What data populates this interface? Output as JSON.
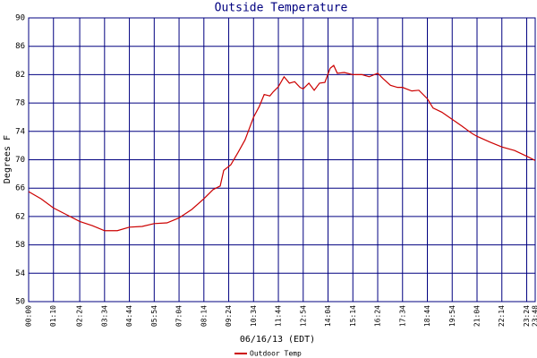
{
  "chart_data": {
    "type": "line",
    "title": "Outside Temperature",
    "x_label": "06/16/13 (EDT)",
    "y_label": "Degrees F",
    "x": [
      0,
      35,
      70,
      105,
      144,
      180,
      214,
      250,
      284,
      320,
      354,
      390,
      424,
      460,
      494,
      520,
      540,
      550,
      570,
      590,
      610,
      634,
      650,
      664,
      680,
      690,
      704,
      720,
      735,
      750,
      765,
      774,
      790,
      805,
      820,
      835,
      850,
      860,
      870,
      890,
      914,
      940,
      960,
      984,
      1000,
      1020,
      1040,
      1054,
      1080,
      1100,
      1124,
      1140,
      1165,
      1194,
      1220,
      1250,
      1264,
      1300,
      1334,
      1370,
      1404,
      1428
    ],
    "series": [
      {
        "name": "Outdoor Temp",
        "color": "#cc0000",
        "values": [
          65.5,
          64.5,
          63.2,
          62.3,
          61.3,
          60.7,
          60.0,
          60.0,
          60.5,
          60.6,
          61.0,
          61.1,
          61.8,
          63.0,
          64.5,
          65.8,
          66.3,
          68.5,
          69.3,
          71.0,
          72.8,
          76.0,
          77.5,
          79.2,
          79.0,
          79.6,
          80.3,
          81.7,
          80.8,
          81.0,
          80.2,
          80.0,
          80.8,
          79.8,
          80.8,
          80.9,
          82.9,
          83.3,
          82.2,
          82.3,
          82.0,
          82.0,
          81.7,
          82.2,
          81.4,
          80.5,
          80.2,
          80.2,
          79.7,
          79.8,
          78.6,
          77.3,
          76.7,
          75.7,
          74.8,
          73.7,
          73.3,
          72.5,
          71.8,
          71.3,
          70.5,
          69.9
        ]
      }
    ],
    "xlim": [
      0,
      1428
    ],
    "xticks": [
      {
        "value": 0,
        "label": "00:00"
      },
      {
        "value": 70,
        "label": "01:10"
      },
      {
        "value": 144,
        "label": "02:24"
      },
      {
        "value": 214,
        "label": "03:34"
      },
      {
        "value": 284,
        "label": "04:44"
      },
      {
        "value": 354,
        "label": "05:54"
      },
      {
        "value": 424,
        "label": "07:04"
      },
      {
        "value": 494,
        "label": "08:14"
      },
      {
        "value": 564,
        "label": "09:24"
      },
      {
        "value": 634,
        "label": "10:34"
      },
      {
        "value": 704,
        "label": "11:44"
      },
      {
        "value": 774,
        "label": "12:54"
      },
      {
        "value": 844,
        "label": "14:04"
      },
      {
        "value": 914,
        "label": "15:14"
      },
      {
        "value": 984,
        "label": "16:24"
      },
      {
        "value": 1054,
        "label": "17:34"
      },
      {
        "value": 1124,
        "label": "18:44"
      },
      {
        "value": 1194,
        "label": "19:54"
      },
      {
        "value": 1264,
        "label": "21:04"
      },
      {
        "value": 1334,
        "label": "22:14"
      },
      {
        "value": 1404,
        "label": "23:24"
      },
      {
        "value": 1428,
        "label": "23:48"
      }
    ],
    "ylim": [
      50,
      90
    ],
    "yticks": [
      50,
      54,
      58,
      62,
      66,
      70,
      74,
      78,
      82,
      86,
      90
    ],
    "grid": true
  }
}
